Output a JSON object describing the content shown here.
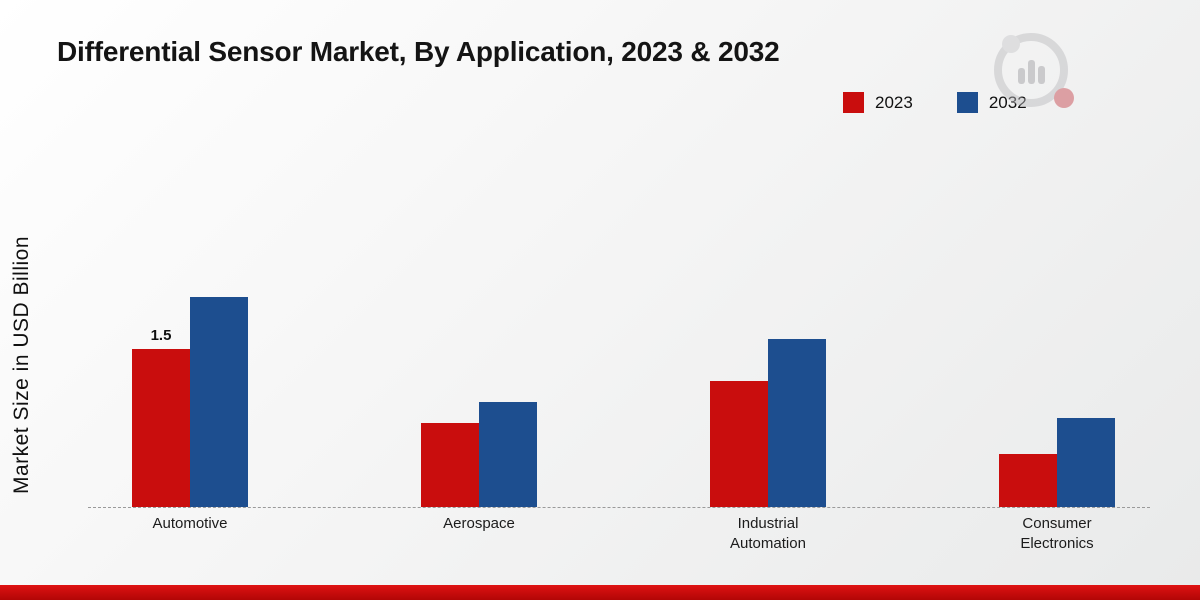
{
  "title": "Differential Sensor Market, By Application, 2023 & 2032",
  "ylabel": "Market Size in USD Billion",
  "legend": [
    {
      "label": "2023",
      "color": "#c90d0d"
    },
    {
      "label": "2032",
      "color": "#1d4e8f"
    }
  ],
  "watermark_icon": "analytics-logo-icon",
  "accent_colors": {
    "series_2023": "#c90d0d",
    "series_2032": "#1d4e8f",
    "footer_bar": "#c00a0a"
  },
  "chart_data": {
    "type": "bar",
    "title": "Differential Sensor Market, By Application, 2023 & 2032",
    "categories": [
      "Automotive",
      "Aerospace",
      "Industrial Automation",
      "Consumer Electronics"
    ],
    "series": [
      {
        "name": "2023",
        "color": "#c90d0d",
        "values": [
          1.5,
          0.8,
          1.2,
          0.5
        ]
      },
      {
        "name": "2032",
        "color": "#1d4e8f",
        "values": [
          2.0,
          1.0,
          1.6,
          0.85
        ]
      }
    ],
    "xlabel": "",
    "ylabel": "Market Size in USD Billion",
    "ylim": [
      0,
      2.2
    ],
    "grid": false,
    "axis_style": "dashed-baseline-only",
    "legend_position": "top-right",
    "data_labels": [
      {
        "series": "2023",
        "category": "Automotive",
        "text": "1.5"
      }
    ]
  }
}
